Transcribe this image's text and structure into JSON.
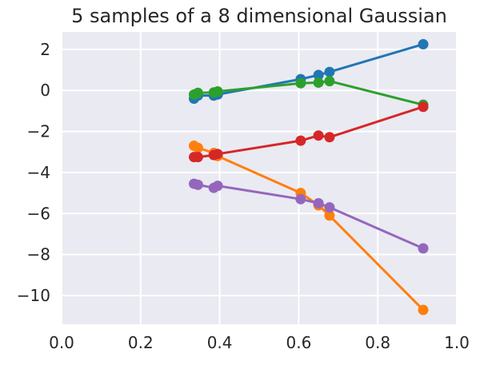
{
  "chart_data": {
    "type": "line",
    "title": "5 samples of a 8 dimensional Gaussian",
    "xlabel": "",
    "ylabel": "",
    "xlim": [
      0.0,
      1.0
    ],
    "ylim": [
      -11.4,
      2.85
    ],
    "grid": true,
    "legend": "none",
    "x_ticks": [
      0.0,
      0.2,
      0.4,
      0.6,
      0.8,
      1.0
    ],
    "x_tick_labels": [
      "0.0",
      "0.2",
      "0.4",
      "0.6",
      "0.8",
      "1.0"
    ],
    "y_ticks": [
      2,
      0,
      -2,
      -4,
      -6,
      -8,
      -10
    ],
    "y_tick_labels": [
      "2",
      "0",
      "−2",
      "−4",
      "−6",
      "−8",
      "−10"
    ],
    "x": [
      0.335,
      0.345,
      0.385,
      0.395,
      0.605,
      0.65,
      0.678,
      0.915
    ],
    "series": [
      {
        "color": "#1f77b4",
        "values": [
          -0.4,
          -0.25,
          -0.25,
          -0.2,
          0.55,
          0.75,
          0.9,
          2.25
        ]
      },
      {
        "color": "#ff7f0e",
        "values": [
          -2.7,
          -2.8,
          -3.05,
          -3.2,
          -5.0,
          -5.6,
          -6.1,
          -10.7
        ]
      },
      {
        "color": "#2ca02c",
        "values": [
          -0.2,
          -0.12,
          -0.1,
          -0.05,
          0.35,
          0.38,
          0.45,
          -0.7
        ]
      },
      {
        "color": "#d62728",
        "values": [
          -3.25,
          -3.25,
          -3.15,
          -3.1,
          -2.45,
          -2.2,
          -2.28,
          -0.8
        ]
      },
      {
        "color": "#9467bd",
        "values": [
          -4.55,
          -4.6,
          -4.75,
          -4.65,
          -5.3,
          -5.5,
          -5.7,
          -7.7
        ]
      }
    ]
  },
  "colors": {
    "plot_background": "#eaeaf2",
    "grid": "#ffffff",
    "text": "#262626"
  }
}
